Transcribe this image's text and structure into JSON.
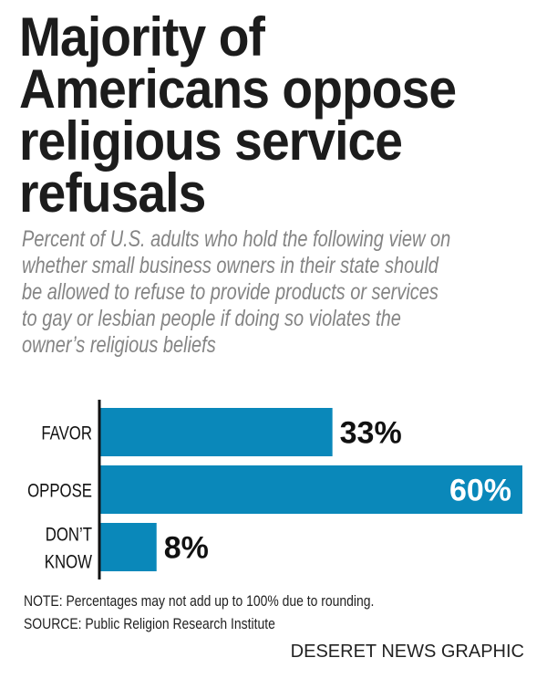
{
  "title_lines": [
    "Majority of",
    "Americans oppose",
    "religious service",
    "refusals"
  ],
  "subtitle_lines": [
    "Percent of U.S. adults who hold the following view on",
    "whether small business owners in their state should",
    "be allowed to refuse to provide products or services",
    "to gay or lesbian people if doing so violates the",
    "owner’s religious beliefs"
  ],
  "chart_data": {
    "type": "bar",
    "orientation": "horizontal",
    "categories": [
      [
        "FAVOR"
      ],
      [
        "OPPOSE"
      ],
      [
        "DON’T",
        "KNOW"
      ]
    ],
    "values": [
      33,
      60,
      8
    ],
    "value_labels": [
      "33%",
      "60%",
      "8%"
    ],
    "xlim": [
      0,
      60
    ],
    "grid": false,
    "bar_color": "#0a88ba"
  },
  "note": "NOTE: Percentages may not add up to 100% due to rounding.",
  "source": "SOURCE: Public Religion Research Institute",
  "credit": "DESERET NEWS GRAPHIC"
}
